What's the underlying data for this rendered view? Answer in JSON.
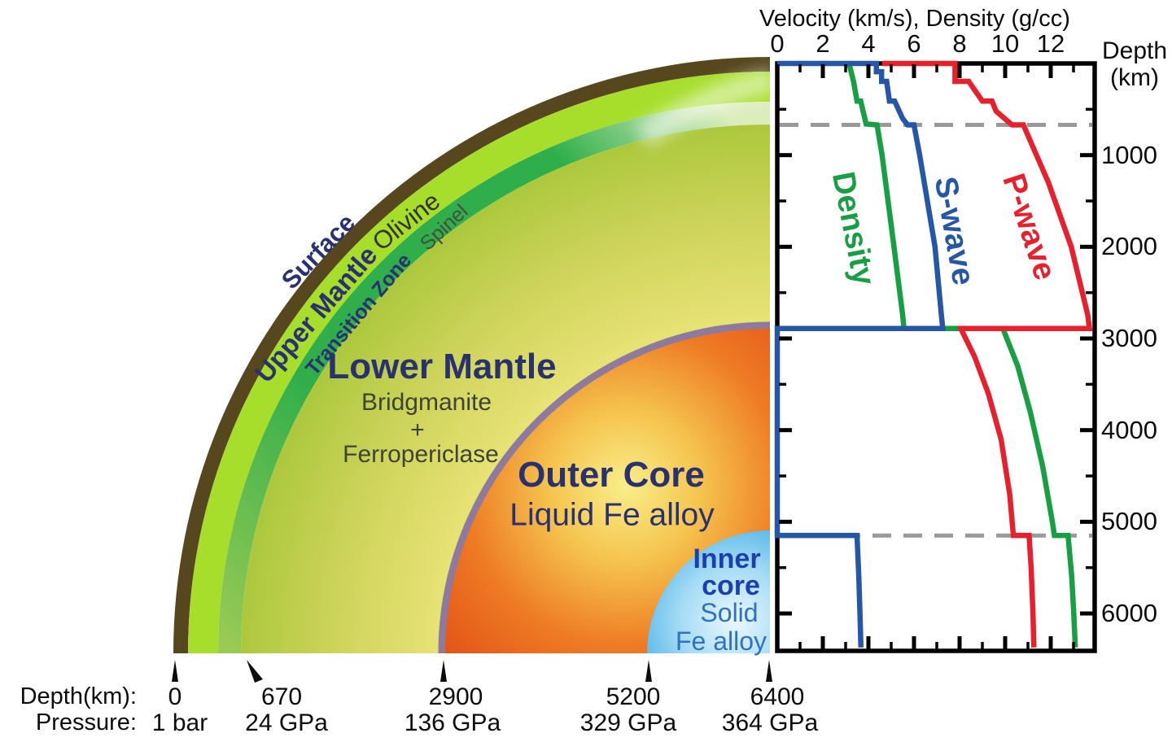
{
  "chart": {
    "title": "Velocity (km/s), Density (g/cc)",
    "depth_axis_line1": "Depth",
    "depth_axis_line2": "(km)"
  },
  "chart_data": {
    "type": "line",
    "title": "Velocity (km/s), Density (g/cc)",
    "xlabel": "Velocity (km/s), Density (g/cc)",
    "ylabel": "Depth (km)",
    "x_ticks": [
      0,
      2,
      4,
      6,
      8,
      10,
      12
    ],
    "y_ticks": [
      1000,
      2000,
      3000,
      4000,
      5000,
      6000
    ],
    "x_range": [
      0,
      13.9
    ],
    "depth_range_km": [
      0,
      6400
    ],
    "grid": false,
    "dashed_boundary_depths_km": [
      670,
      5150
    ],
    "series": [
      {
        "name": "Density",
        "unit": "g/cc",
        "color": "#189e43",
        "points": [
          [
            0,
            3.15
          ],
          [
            200,
            3.35
          ],
          [
            410,
            3.5
          ],
          [
            410,
            3.66
          ],
          [
            660,
            3.9
          ],
          [
            670,
            4.38
          ],
          [
            1000,
            4.6
          ],
          [
            2000,
            5.12
          ],
          [
            2740,
            5.5
          ],
          [
            2891,
            5.56
          ],
          [
            2891,
            9.9
          ],
          [
            3300,
            10.55
          ],
          [
            3800,
            11.1
          ],
          [
            4400,
            11.65
          ],
          [
            5000,
            12.07
          ],
          [
            5149,
            12.16
          ],
          [
            5149,
            12.76
          ],
          [
            5600,
            12.92
          ],
          [
            6000,
            13.01
          ],
          [
            6371,
            13.08
          ]
        ]
      },
      {
        "name": "S-wave",
        "unit": "km/s",
        "color": "#2656a6",
        "points": [
          [
            0,
            0
          ],
          [
            0,
            4.35
          ],
          [
            90,
            4.35
          ],
          [
            90,
            4.58
          ],
          [
            195,
            4.58
          ],
          [
            195,
            4.8
          ],
          [
            410,
            4.92
          ],
          [
            410,
            5.15
          ],
          [
            600,
            5.5
          ],
          [
            670,
            5.72
          ],
          [
            670,
            6.0
          ],
          [
            1000,
            6.25
          ],
          [
            2000,
            6.92
          ],
          [
            2740,
            7.2
          ],
          [
            2891,
            7.26
          ],
          [
            2891,
            0
          ],
          [
            5149,
            0
          ],
          [
            5149,
            3.5
          ],
          [
            5600,
            3.58
          ],
          [
            6000,
            3.63
          ],
          [
            6371,
            3.67
          ]
        ]
      },
      {
        "name": "P-wave",
        "unit": "km/s",
        "color": "#e7202d",
        "points": [
          [
            0,
            4.6
          ],
          [
            0,
            7.8
          ],
          [
            195,
            7.8
          ],
          [
            195,
            8.4
          ],
          [
            410,
            9.0
          ],
          [
            410,
            9.42
          ],
          [
            520,
            9.6
          ],
          [
            670,
            10.3
          ],
          [
            670,
            10.8
          ],
          [
            900,
            11.2
          ],
          [
            1300,
            11.9
          ],
          [
            2000,
            12.9
          ],
          [
            2740,
            13.62
          ],
          [
            2891,
            13.7
          ],
          [
            2891,
            8.05
          ],
          [
            3200,
            8.66
          ],
          [
            3600,
            9.26
          ],
          [
            4100,
            9.82
          ],
          [
            4700,
            10.2
          ],
          [
            5149,
            10.36
          ],
          [
            5149,
            11.05
          ],
          [
            5500,
            11.14
          ],
          [
            6000,
            11.22
          ],
          [
            6371,
            11.26
          ]
        ]
      }
    ]
  },
  "earth": {
    "labels": {
      "surface": "Surface",
      "upper_mantle": "Upper Mantle",
      "olivine": "Olivine",
      "transition_zone": "Transition Zone",
      "spinel": "Spinel",
      "lower_mantle": "Lower Mantle",
      "lower_mantle_sub1": "Bridgmanite",
      "lower_mantle_sub2": "+",
      "lower_mantle_sub3": "Ferropericlase",
      "outer_core": "Outer Core",
      "outer_core_sub": "Liquid Fe alloy",
      "inner_core_line1": "Inner",
      "inner_core_line2": "core",
      "inner_core_sub1": "Solid",
      "inner_core_sub2": "Fe alloy"
    },
    "colors": {
      "crust": "#57471f",
      "upper_mantle": "#a7de2c",
      "transition_dark": "#2fae4b",
      "transition_light": "#9ccb54",
      "transition_sheen": "#dcedbd",
      "lower_mantle_inner": "#f0e87f",
      "lower_mantle_mid": "#cfd45c",
      "lower_mantle_outer": "#a9c73a",
      "cmb_boundary": "#8d7a9c",
      "outer_core_center": "#f9ee8a",
      "outer_core_mid": "#ee7a24",
      "outer_core_edge": "#e04a14",
      "inner_core_center": "#eaf8fe",
      "inner_core_mid": "#a6dcf5",
      "inner_core_edge": "#1e9ce0",
      "label_navy": "#2a316f",
      "inner_core_label_blue": "#1c3fae",
      "inner_core_sub_blue": "#2f71c5"
    }
  },
  "annotations": {
    "depth_label": "Depth(km):",
    "pressure_label": "Pressure:",
    "boundaries": [
      {
        "depth": "0",
        "pressure": "1 bar"
      },
      {
        "depth": "670",
        "pressure": "24 GPa"
      },
      {
        "depth": "2900",
        "pressure": "136 GPa"
      },
      {
        "depth": "5200",
        "pressure": "329 GPa"
      },
      {
        "depth": "6400",
        "pressure": "364 GPa"
      }
    ]
  }
}
